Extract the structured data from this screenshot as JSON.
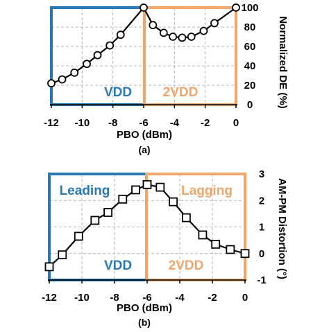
{
  "chart_data": [
    {
      "type": "line",
      "panel_label": "(a)",
      "xlabel": "PBO (dBm)",
      "ylabel": "Normalized DE (%)",
      "xlim": [
        -12,
        0
      ],
      "ylim": [
        0,
        100
      ],
      "xticks": [
        "-12",
        "-10",
        "-8",
        "-6",
        "-4",
        "-2",
        "0"
      ],
      "yticks": [
        "0",
        "20",
        "40",
        "60",
        "80",
        "100"
      ],
      "grid": true,
      "marker": "circle",
      "x": [
        -12,
        -11.3,
        -10.5,
        -9.7,
        -9,
        -8.2,
        -7.5,
        -6,
        -5.4,
        -4.7,
        -4.1,
        -3.5,
        -2.9,
        -2.1,
        -1.4,
        0
      ],
      "values": [
        22,
        26,
        33,
        42,
        51,
        61,
        72,
        100,
        82,
        74,
        70,
        69,
        70,
        76,
        84,
        100
      ],
      "regions": [
        {
          "label": "VDD",
          "x_from": -12,
          "x_to": -6,
          "color": "#2a78b4"
        },
        {
          "label": "2VDD",
          "x_from": -6,
          "x_to": 0,
          "color": "#f0a56a"
        }
      ]
    },
    {
      "type": "line",
      "panel_label": "(b)",
      "xlabel": "PBO (dBm)",
      "ylabel": "AM-PM Distortion (°)",
      "xlim": [
        -12,
        0
      ],
      "ylim": [
        -1,
        3
      ],
      "xticks": [
        "-12",
        "-10",
        "-8",
        "-6",
        "-4",
        "-2",
        "0"
      ],
      "yticks": [
        "-1",
        "0",
        "1",
        "2",
        "3"
      ],
      "grid": true,
      "marker": "square",
      "x": [
        -12,
        -11.2,
        -10.2,
        -9.2,
        -8.4,
        -7.5,
        -6.7,
        -6,
        -5.2,
        -4.4,
        -3.6,
        -2.6,
        -1.8,
        -0.9,
        0
      ],
      "values": [
        -0.5,
        -0.05,
        0.65,
        1.25,
        1.55,
        2.05,
        2.4,
        2.6,
        2.5,
        1.95,
        1.35,
        0.7,
        0.35,
        0.15,
        0
      ],
      "regions": [
        {
          "label": "Leading",
          "sub_label": "VDD",
          "x_from": -12,
          "x_to": -6,
          "color": "#2a78b4"
        },
        {
          "label": "Lagging",
          "sub_label": "2VDD",
          "x_from": -6,
          "x_to": 0,
          "color": "#f0a56a"
        }
      ]
    }
  ]
}
